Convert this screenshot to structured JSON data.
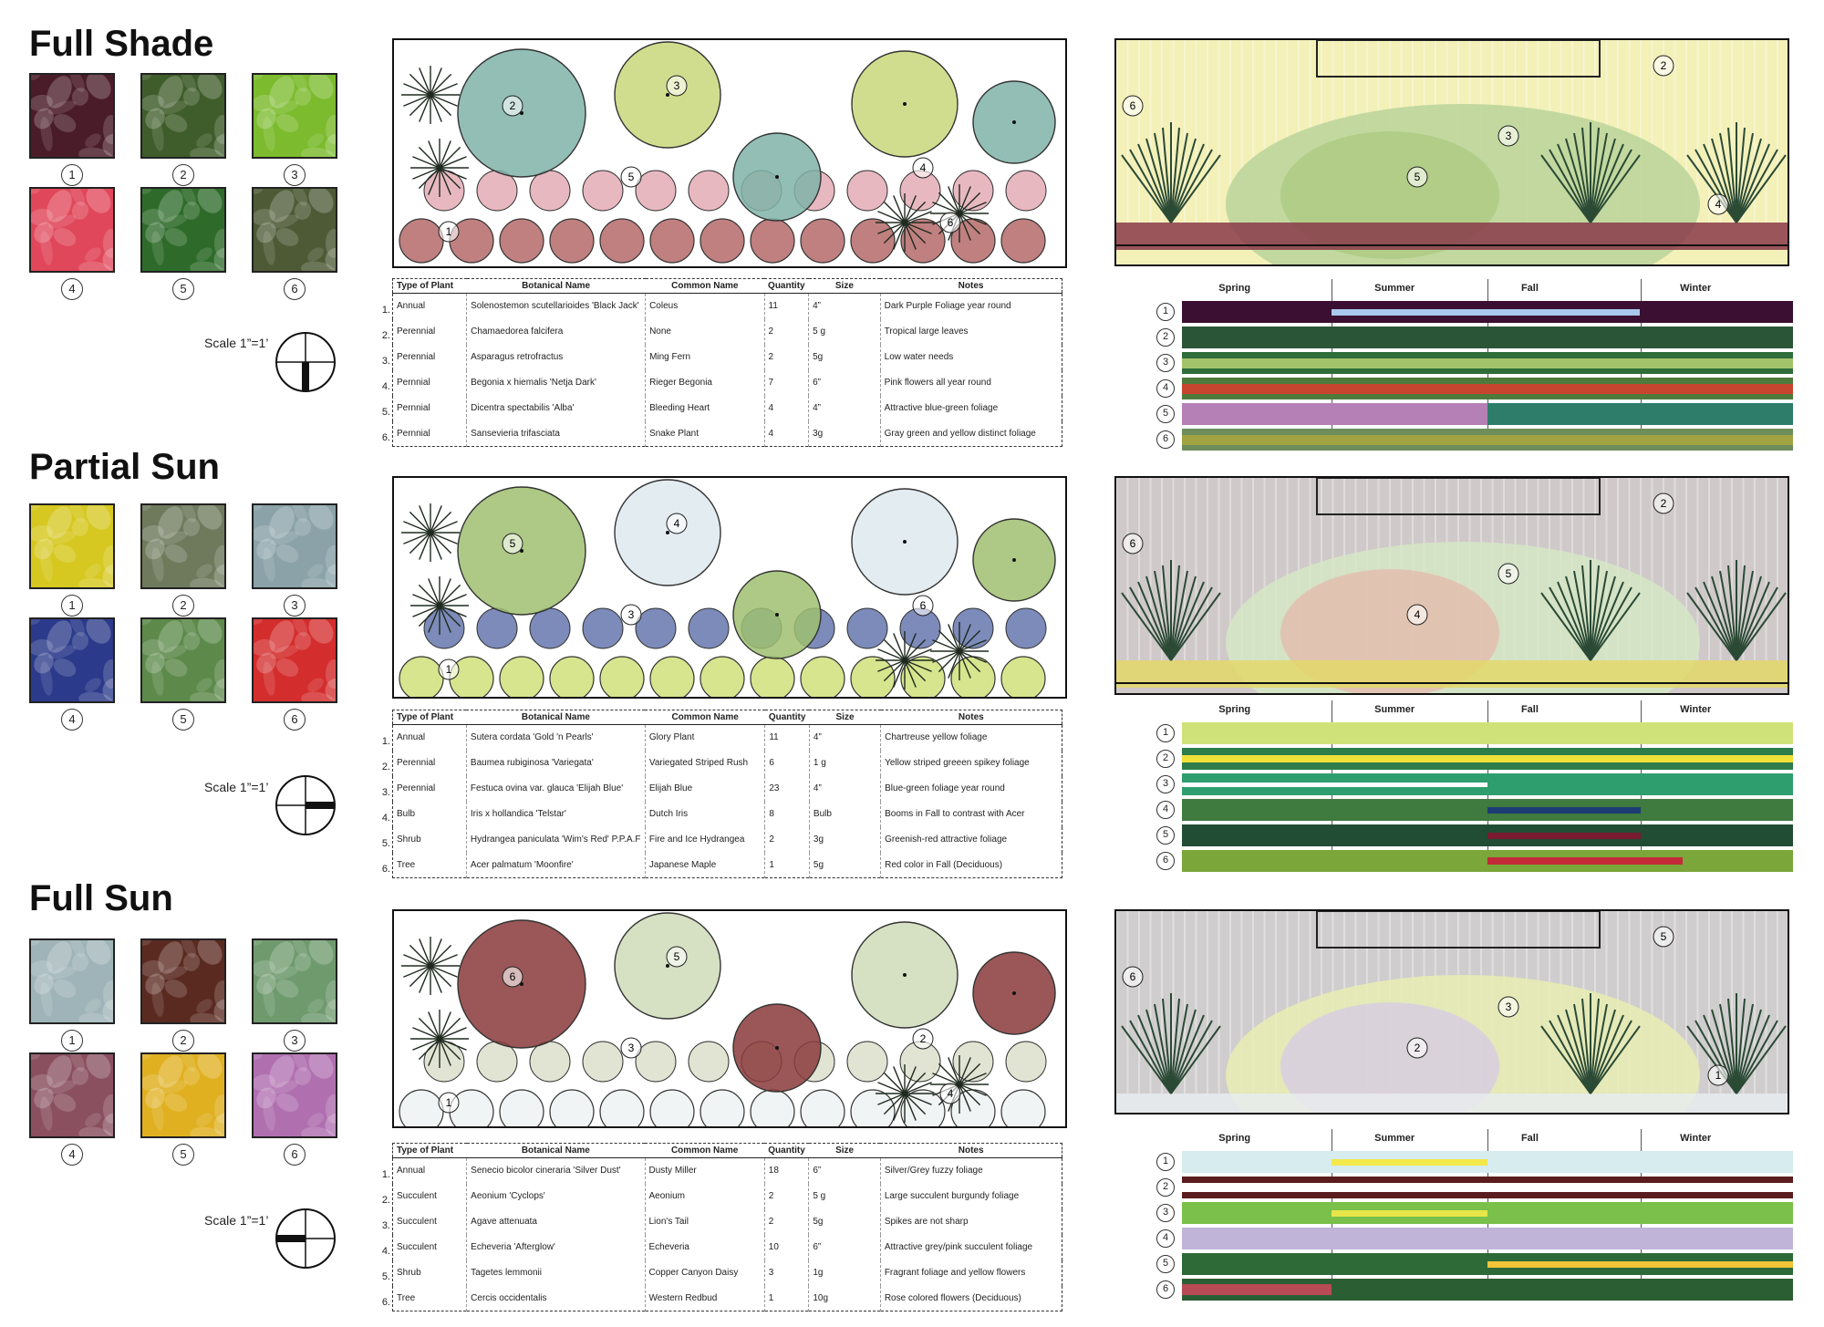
{
  "sections": [
    {
      "id": "full-shade",
      "title": "Full Shade",
      "photo_numbers": [
        "1",
        "2",
        "3",
        "4",
        "5",
        "6"
      ],
      "photo_colors": [
        "#4a1c2a",
        "#3f5d2b",
        "#7cbb2e",
        "#e0475a",
        "#2e6b2a",
        "#4e5a36"
      ],
      "scale": "Scale 1”=1’",
      "plan_labels": [
        "2",
        "3",
        "5",
        "4",
        "1",
        "6"
      ],
      "table_headers": [
        "Type of Plant",
        "Botanical Name",
        "Common Name",
        "Quantity",
        "Size",
        "Notes"
      ],
      "row_numbers": [
        "1.",
        "2.",
        "3.",
        "4.",
        "5.",
        "6."
      ],
      "rows": [
        [
          "Annual",
          "Solenostemon scutellarioides 'Black Jack'",
          "Coleus",
          "11",
          "4”",
          "Dark Purple Foliage year round"
        ],
        [
          "Perennial",
          "Chamaedorea falcifera",
          "None",
          "2",
          "5 g",
          "Tropical large leaves"
        ],
        [
          "Perennial",
          "Asparagus retrofractus",
          "Ming Fern",
          "2",
          "5g",
          "Low water needs"
        ],
        [
          "Pernnial",
          "Begonia x hiemalis 'Netja Dark'",
          "Rieger Begonia",
          "7",
          "6”",
          "Pink flowers all year round"
        ],
        [
          "Pernnial",
          "Dicentra spectabilis 'Alba'",
          "Bleeding Heart",
          "4",
          "4”",
          "Attractive blue-green foliage"
        ],
        [
          "Pernnial",
          "Sansevieria trifasciata",
          "Snake Plant",
          "4",
          "3g",
          "Gray green and yellow distinct foliage"
        ]
      ],
      "elev_labels": [
        "6",
        "2",
        "3",
        "5",
        "4"
      ],
      "seasons": [
        "Spring",
        "Summer",
        "Fall",
        "Winter"
      ],
      "chart_numbers": [
        "1",
        "2",
        "3",
        "4",
        "5",
        "6"
      ],
      "chart_colors": {
        "r1": [
          "#3b0f32",
          "#a9c8ee",
          "#3b0f32"
        ],
        "r2": [
          "#2c5535"
        ],
        "r3": [
          "#a6c56a",
          "#2c6b3a"
        ],
        "r4": [
          "#c43d2b",
          "#4a6b3a"
        ],
        "r5": [
          "#b07ab0",
          "#2f7a6a"
        ],
        "r6": [
          "#9b9e3d",
          "#6a8a5a"
        ]
      }
    },
    {
      "id": "partial-sun",
      "title": "Partial Sun",
      "photo_numbers": [
        "1",
        "2",
        "3",
        "4",
        "5",
        "6"
      ],
      "photo_colors": [
        "#d6c820",
        "#6f7a5d",
        "#8aa2a8",
        "#2b3a8a",
        "#5d8a4b",
        "#d42d2d"
      ],
      "scale": "Scale 1”=1’",
      "plan_labels": [
        "5",
        "4",
        "3",
        "6",
        "1"
      ],
      "table_headers": [
        "Type of Plant",
        "Botanical Name",
        "Common Name",
        "Quantity",
        "Size",
        "Notes"
      ],
      "row_numbers": [
        "1.",
        "2.",
        "3.",
        "4.",
        "5.",
        "6."
      ],
      "rows": [
        [
          "Annual",
          "Sutera cordata 'Gold 'n Pearls'",
          "Glory Plant",
          "11",
          "4”",
          "Chartreuse yellow foliage"
        ],
        [
          "Perennial",
          "Baumea rubiginosa 'Variegata'",
          "Variegated Striped Rush",
          "6",
          "1 g",
          "Yellow striped greeen spikey foliage"
        ],
        [
          "Perennial",
          "Festuca ovina var. glauca 'Elijah Blue'",
          "Elijah Blue",
          "23",
          "4”",
          "Blue-green foliage year round"
        ],
        [
          "Bulb",
          "Iris x hollandica 'Telstar'",
          "Dutch Iris",
          "8",
          "Bulb",
          "Booms in Fall to contrast with Acer"
        ],
        [
          "Shrub",
          "Hydrangea paniculata 'Wim's Red' P.P.A.F",
          "Fire and Ice Hydrangea",
          "2",
          "3g",
          "Greenish-red attractive foliage"
        ],
        [
          "Tree",
          "Acer palmatum 'Moonfire'",
          "Japanese Maple",
          "1",
          "5g",
          "Red color in Fall (Deciduous)"
        ]
      ],
      "elev_labels": [
        "6",
        "2",
        "5",
        "4"
      ],
      "seasons": [
        "Spring",
        "Summer",
        "Fall",
        "Winter"
      ],
      "chart_numbers": [
        "1",
        "2",
        "3",
        "4",
        "5",
        "6"
      ]
    },
    {
      "id": "full-sun",
      "title": "Full Sun",
      "photo_numbers": [
        "1",
        "2",
        "3",
        "4",
        "5",
        "6"
      ],
      "photo_colors": [
        "#9fb4b8",
        "#5a2a20",
        "#6f9a6e",
        "#8a5060",
        "#e0b020",
        "#b070b0"
      ],
      "scale": "Scale 1”=1’",
      "plan_labels": [
        "6",
        "5",
        "3",
        "2",
        "1",
        "4"
      ],
      "table_headers": [
        "Type of Plant",
        "Botanical Name",
        "Common Name",
        "Quantity",
        "Size",
        "Notes"
      ],
      "row_numbers": [
        "1.",
        "2.",
        "3.",
        "4.",
        "5.",
        "6."
      ],
      "rows": [
        [
          "Annual",
          "Senecio bicolor cineraria 'Silver Dust'",
          "Dusty Miller",
          "18",
          "6”",
          "Silver/Grey fuzzy foliage"
        ],
        [
          "Succulent",
          "Aeonium 'Cyclops'",
          "Aeonium",
          "2",
          "5 g",
          "Large succulent burgundy foliage"
        ],
        [
          "Succulent",
          "Agave attenuata",
          "Lion's Tail",
          "2",
          "5g",
          "Spikes are not sharp"
        ],
        [
          "Succulent",
          "Echeveria 'Afterglow'",
          "Echeveria",
          "10",
          "6”",
          "Attractive grey/pink succulent foliage"
        ],
        [
          "Shrub",
          "Tagetes lemmonii",
          "Copper Canyon Daisy",
          "3",
          "1g",
          "Fragrant foliage and yellow flowers"
        ],
        [
          "Tree",
          "Cercis occidentalis",
          "Western Redbud",
          "1",
          "10g",
          "Rose colored flowers (Deciduous)"
        ]
      ],
      "elev_labels": [
        "6",
        "5",
        "3",
        "2",
        "1"
      ],
      "seasons": [
        "Spring",
        "Summer",
        "Fall",
        "Winter"
      ],
      "chart_numbers": [
        "1",
        "2",
        "3",
        "4",
        "5",
        "6"
      ]
    }
  ]
}
